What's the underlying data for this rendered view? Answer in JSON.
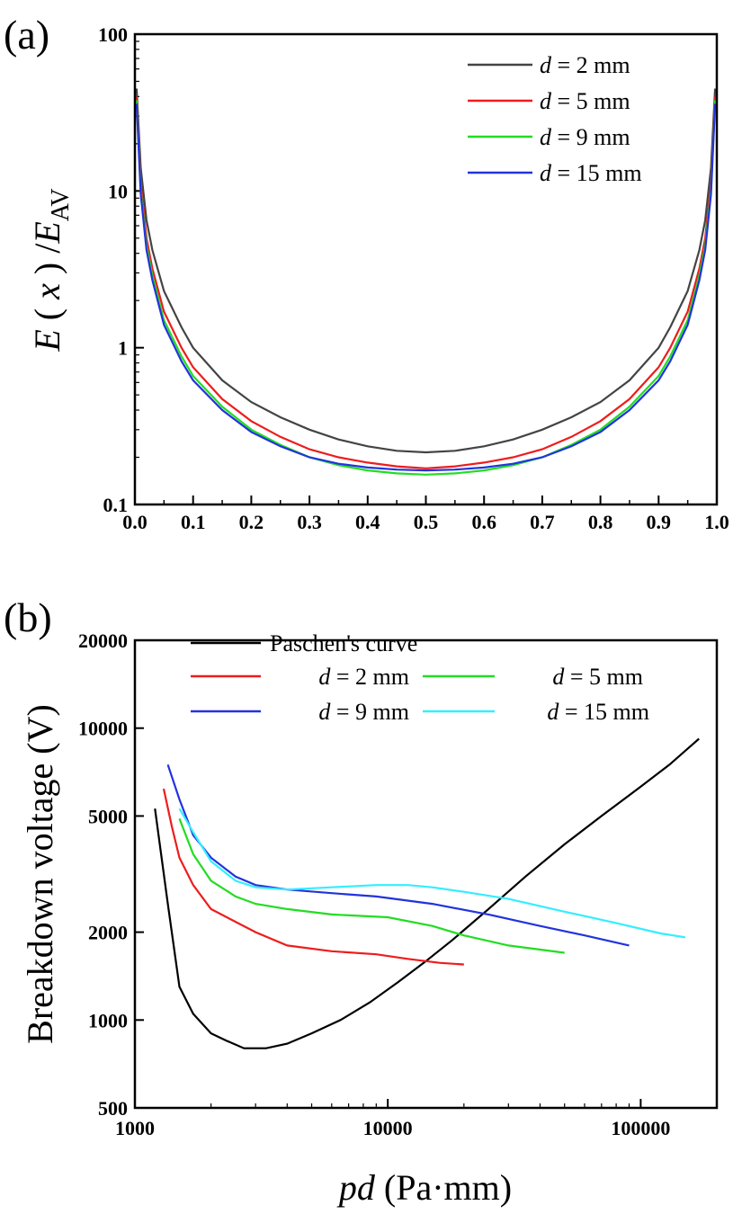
{
  "chart_data": [
    {
      "type": "line",
      "panel_label": "(a)",
      "ylabel": "E ( x ) /E_AV",
      "xlabel": "",
      "yscale": "log",
      "xlim": [
        0.0,
        1.0
      ],
      "ylim": [
        0.1,
        100
      ],
      "x_ticks": [
        "0.0",
        "0.1",
        "0.2",
        "0.3",
        "0.4",
        "0.5",
        "0.6",
        "0.7",
        "0.8",
        "0.9",
        "1.0"
      ],
      "y_ticks": [
        "0.1",
        "1",
        "10",
        "100"
      ],
      "legend_position": "top-right",
      "series": [
        {
          "name": "d = 2 mm",
          "color": "#444444",
          "x": [
            0.003,
            0.01,
            0.02,
            0.03,
            0.05,
            0.08,
            0.1,
            0.15,
            0.2,
            0.25,
            0.3,
            0.35,
            0.4,
            0.45,
            0.5,
            0.55,
            0.6,
            0.65,
            0.7,
            0.75,
            0.8,
            0.85,
            0.9,
            0.92,
            0.95,
            0.97,
            0.98,
            0.99,
            0.997
          ],
          "y": [
            45,
            14,
            6.5,
            4.2,
            2.3,
            1.35,
            1.0,
            0.62,
            0.45,
            0.36,
            0.3,
            0.26,
            0.235,
            0.22,
            0.215,
            0.22,
            0.235,
            0.26,
            0.3,
            0.36,
            0.45,
            0.62,
            1.0,
            1.35,
            2.3,
            4.2,
            6.5,
            14,
            45
          ]
        },
        {
          "name": "d = 5 mm",
          "color": "#ee1c1c",
          "x": [
            0.003,
            0.01,
            0.02,
            0.03,
            0.05,
            0.08,
            0.1,
            0.15,
            0.2,
            0.25,
            0.3,
            0.35,
            0.4,
            0.45,
            0.5,
            0.55,
            0.6,
            0.65,
            0.7,
            0.75,
            0.8,
            0.85,
            0.9,
            0.92,
            0.95,
            0.97,
            0.98,
            0.99,
            0.997
          ],
          "y": [
            40,
            11,
            5,
            3.2,
            1.7,
            1.0,
            0.75,
            0.47,
            0.34,
            0.27,
            0.225,
            0.2,
            0.185,
            0.175,
            0.17,
            0.175,
            0.185,
            0.2,
            0.225,
            0.27,
            0.34,
            0.47,
            0.75,
            1.0,
            1.7,
            3.2,
            5,
            11,
            40
          ]
        },
        {
          "name": "d = 9 mm",
          "color": "#22dd22",
          "x": [
            0.003,
            0.01,
            0.02,
            0.03,
            0.05,
            0.08,
            0.1,
            0.15,
            0.2,
            0.25,
            0.3,
            0.35,
            0.4,
            0.45,
            0.5,
            0.55,
            0.6,
            0.65,
            0.7,
            0.75,
            0.8,
            0.85,
            0.9,
            0.92,
            0.95,
            0.97,
            0.98,
            0.99,
            0.997
          ],
          "y": [
            38,
            10,
            4.5,
            2.9,
            1.5,
            0.88,
            0.66,
            0.42,
            0.3,
            0.24,
            0.2,
            0.178,
            0.165,
            0.158,
            0.155,
            0.158,
            0.165,
            0.178,
            0.2,
            0.24,
            0.3,
            0.42,
            0.66,
            0.88,
            1.5,
            2.9,
            4.5,
            10,
            38
          ]
        },
        {
          "name": "d = 15 mm",
          "color": "#2233dd",
          "x": [
            0.003,
            0.01,
            0.02,
            0.03,
            0.05,
            0.08,
            0.1,
            0.15,
            0.2,
            0.25,
            0.3,
            0.35,
            0.4,
            0.45,
            0.5,
            0.55,
            0.6,
            0.65,
            0.7,
            0.75,
            0.8,
            0.85,
            0.9,
            0.92,
            0.95,
            0.97,
            0.98,
            0.99,
            0.997
          ],
          "y": [
            36,
            9.5,
            4.2,
            2.7,
            1.4,
            0.82,
            0.62,
            0.4,
            0.29,
            0.235,
            0.2,
            0.182,
            0.172,
            0.167,
            0.165,
            0.167,
            0.172,
            0.182,
            0.2,
            0.235,
            0.29,
            0.4,
            0.62,
            0.82,
            1.4,
            2.7,
            4.2,
            9.5,
            36
          ]
        }
      ]
    },
    {
      "type": "line",
      "panel_label": "(b)",
      "ylabel": "Breakdown voltage (V)",
      "xlabel": "pd (Pa·mm)",
      "xscale": "log",
      "yscale": "log",
      "xlim": [
        1000,
        200000
      ],
      "ylim": [
        500,
        20000
      ],
      "x_ticks": [
        "1000",
        "10000",
        "100000"
      ],
      "y_ticks": [
        "500",
        "1000",
        "2000",
        "5000",
        "10000",
        "20000"
      ],
      "legend_position": "top",
      "series": [
        {
          "name": "Paschen's curve",
          "color": "#000000",
          "x": [
            1200,
            1350,
            1500,
            1700,
            2000,
            2300,
            2700,
            3300,
            4000,
            5000,
            6500,
            8500,
            11000,
            14000,
            18000,
            25000,
            35000,
            50000,
            70000,
            100000,
            130000,
            170000
          ],
          "y": [
            5300,
            2500,
            1300,
            1050,
            900,
            850,
            800,
            800,
            830,
            900,
            1000,
            1150,
            1350,
            1580,
            1880,
            2400,
            3100,
            4000,
            5000,
            6300,
            7500,
            9200
          ]
        },
        {
          "name": "d = 2 mm",
          "color": "#ee1c1c",
          "x": [
            1300,
            1400,
            1500,
            1700,
            2000,
            3000,
            4000,
            6000,
            9000,
            12000,
            16000,
            20000
          ],
          "y": [
            6200,
            4600,
            3600,
            2900,
            2400,
            2000,
            1800,
            1720,
            1680,
            1620,
            1570,
            1550
          ]
        },
        {
          "name": "d = 5 mm",
          "color": "#22dd22",
          "x": [
            1500,
            1700,
            2000,
            2500,
            3000,
            4000,
            6000,
            10000,
            15000,
            20000,
            30000,
            50000
          ],
          "y": [
            4900,
            3700,
            3000,
            2650,
            2500,
            2400,
            2300,
            2250,
            2100,
            1950,
            1800,
            1700
          ]
        },
        {
          "name": "d = 9 mm",
          "color": "#2233dd",
          "x": [
            1350,
            1500,
            1700,
            2000,
            2500,
            3000,
            4000,
            6000,
            9000,
            15000,
            25000,
            40000,
            60000,
            90000
          ],
          "y": [
            7500,
            5700,
            4300,
            3600,
            3100,
            2900,
            2800,
            2720,
            2650,
            2500,
            2300,
            2100,
            1950,
            1800
          ]
        },
        {
          "name": "d = 15 mm",
          "color": "#33eeff",
          "x": [
            1500,
            1700,
            2000,
            2500,
            3000,
            4000,
            6000,
            9000,
            12000,
            15000,
            20000,
            30000,
            50000,
            80000,
            120000,
            150000
          ],
          "y": [
            5300,
            4400,
            3500,
            3000,
            2850,
            2800,
            2850,
            2900,
            2900,
            2850,
            2750,
            2600,
            2350,
            2150,
            1980,
            1920
          ]
        }
      ]
    }
  ]
}
